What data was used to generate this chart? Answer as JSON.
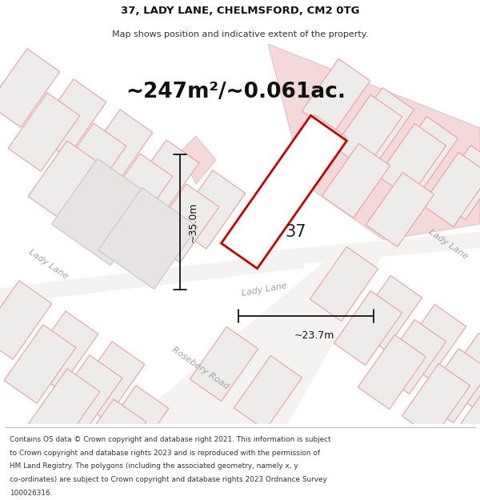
{
  "title": "37, LADY LANE, CHELMSFORD, CM2 0TG",
  "subtitle": "Map shows position and indicative extent of the property.",
  "area_text": "~247m²/~0.061ac.",
  "label_37": "37",
  "dim_height": "~35.0m",
  "dim_width": "~23.7m",
  "road_label_topleft": "Lady Lane",
  "road_label_center": "Lady Lane",
  "road_label_bottomright": "Lady Lane",
  "road_label_rosebery": "Rosebery Road",
  "footer_lines": [
    "Contains OS data © Crown copyright and database right 2021. This information is subject",
    "to Crown copyright and database rights 2023 and is reproduced with the permission of",
    "HM Land Registry. The polygons (including the associated geometry, namely x, y",
    "co-ordinates) are subject to Crown copyright and database rights 2023 Ordnance Survey",
    "100026316."
  ],
  "map_bg": "#f7f5f5",
  "plot_color": "#cc0000",
  "road_line_color": "#e8a0a0",
  "building_fill": "#e8e0e0",
  "building_edge": "#d0b0b0",
  "pink_fill": "#f0d0d0",
  "pink_edge": "#d8a0a0",
  "dim_line_color": "#111111",
  "road_text_color": "#aaaaaa",
  "text_color": "#333333"
}
